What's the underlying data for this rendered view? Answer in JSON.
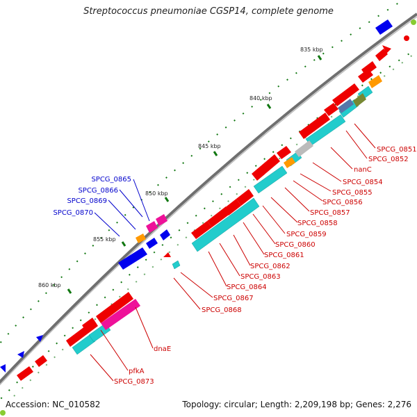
{
  "title": "Streptococcus pneumoniae CGSP14, complete genome",
  "footer": {
    "accession": "Accession: NC_010582",
    "summary": "Topology: circular; Length: 2,209,198 bp; Genes: 2,276"
  },
  "colors": {
    "forward_gene": "#ee0000",
    "reverse_gene": "#0000ee",
    "cds": "#22cccc",
    "pink": "#ee1199",
    "orange": "#ff9900",
    "backbone": "#777777",
    "tick": "#117711",
    "label_red": "#cc0000",
    "label_blue": "#0000cc"
  },
  "ticks": [
    {
      "label": "835 kbp"
    },
    {
      "label": "840 kbp"
    },
    {
      "label": "845 kbp"
    },
    {
      "label": "850 kbp"
    },
    {
      "label": "855 kbp"
    },
    {
      "label": "860 kbp"
    }
  ],
  "labels_red": [
    {
      "text": "SPCG_0851"
    },
    {
      "text": "SPCG_0852"
    },
    {
      "text": "nanC"
    },
    {
      "text": "SPCG_0854"
    },
    {
      "text": "SPCG_0855"
    },
    {
      "text": "SPCG_0856"
    },
    {
      "text": "SPCG_0857"
    },
    {
      "text": "SPCG_0858"
    },
    {
      "text": "SPCG_0859"
    },
    {
      "text": "SPCG_0860"
    },
    {
      "text": "SPCG_0861"
    },
    {
      "text": "SPCG_0862"
    },
    {
      "text": "SPCG_0863"
    },
    {
      "text": "SPCG_0864"
    },
    {
      "text": "SPCG_0867"
    },
    {
      "text": "SPCG_0868"
    },
    {
      "text": "dnaE"
    },
    {
      "text": "pfkA"
    },
    {
      "text": "SPCG_0873"
    }
  ],
  "labels_blue": [
    {
      "text": "SPCG_0865"
    },
    {
      "text": "SPCG_0866"
    },
    {
      "text": "SPCG_0869"
    },
    {
      "text": "SPCG_0870"
    }
  ]
}
